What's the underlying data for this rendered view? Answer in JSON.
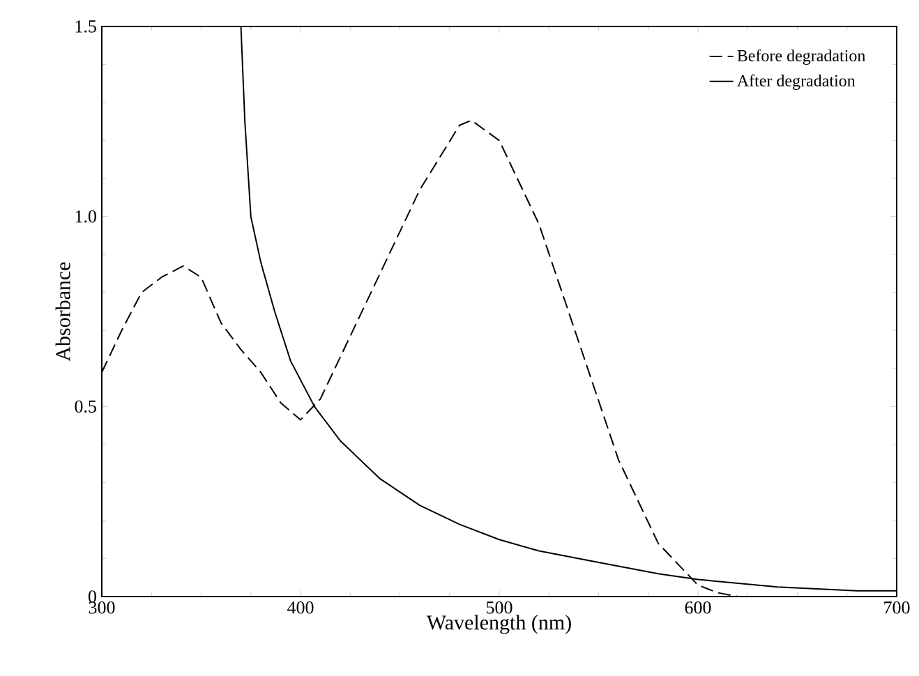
{
  "chart_data": {
    "type": "line",
    "xlabel": "Wavelength (nm)",
    "ylabel": "Absorbance",
    "xlim": [
      300,
      700
    ],
    "xticks": [
      300,
      400,
      500,
      600,
      700
    ],
    "ylim": [
      0,
      1.5
    ],
    "yticks": [
      0,
      0.5,
      {
        "value": 1,
        "label": "1.0"
      },
      {
        "value": 1.5,
        "label": "1.5"
      }
    ],
    "legend": "top right",
    "marker": "none",
    "series": [
      {
        "name": "Before degradation",
        "color": "#000000",
        "line_style": "dashed",
        "x": [
          300,
          310,
          320,
          330,
          341,
          350,
          360,
          370,
          380,
          390,
          400,
          410,
          420,
          440,
          460,
          480,
          486,
          500,
          520,
          540,
          560,
          580,
          600,
          610,
          620
        ],
        "values": [
          0.59,
          0.7,
          0.8,
          0.84,
          0.87,
          0.84,
          0.72,
          0.65,
          0.59,
          0.51,
          0.465,
          0.52,
          0.63,
          0.85,
          1.07,
          1.24,
          1.253,
          1.2,
          0.98,
          0.67,
          0.36,
          0.14,
          0.03,
          0.01,
          0
        ]
      },
      {
        "name": "After degradation",
        "color": "#000000",
        "line_style": "solid",
        "x": [
          370,
          372,
          375,
          380,
          387,
          395,
          407,
          420,
          440,
          460,
          480,
          500,
          520,
          550,
          580,
          600,
          640,
          680,
          700
        ],
        "values": [
          1.5,
          1.25,
          1.0,
          0.88,
          0.75,
          0.62,
          0.5,
          0.41,
          0.31,
          0.24,
          0.19,
          0.15,
          0.12,
          0.09,
          0.06,
          0.045,
          0.025,
          0.015,
          0.015
        ]
      }
    ]
  }
}
